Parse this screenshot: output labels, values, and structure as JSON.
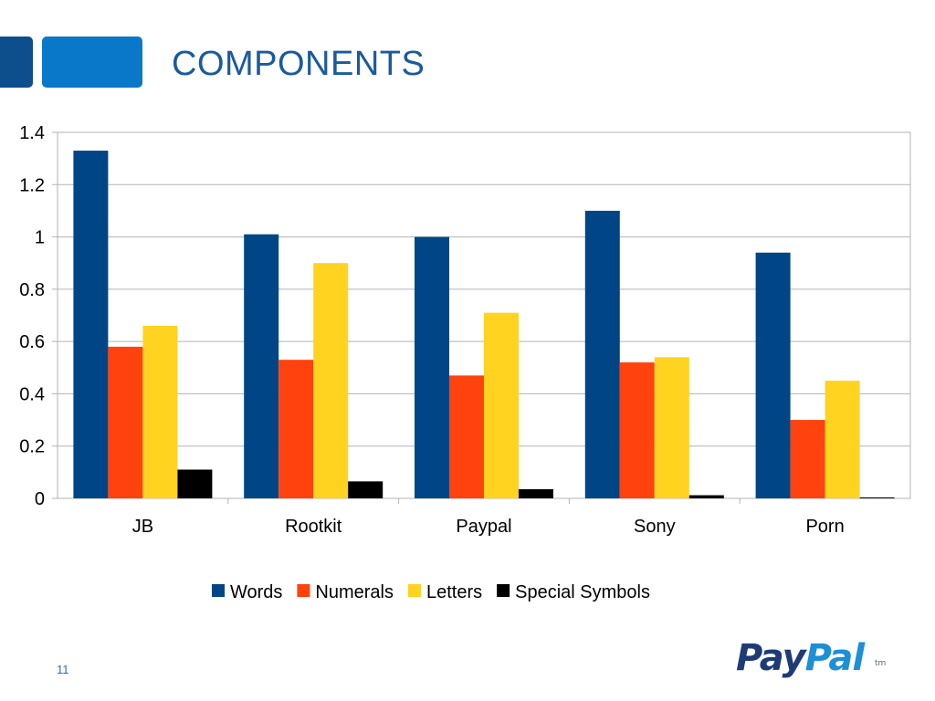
{
  "slide": {
    "title": "COMPONENTS",
    "page_number": "11"
  },
  "logo": {
    "pay": "Pay",
    "pal": "Pal",
    "tm": "tm"
  },
  "colors": {
    "title": "#1a5a9e",
    "accent_dark": "#0d4f8c",
    "accent_light": "#0a78c8"
  },
  "chart_data": {
    "type": "bar",
    "categories": [
      "JB",
      "Rootkit",
      "Paypal",
      "Sony",
      "Porn"
    ],
    "series": [
      {
        "name": "Words",
        "color": "#004586",
        "values": [
          1.33,
          1.01,
          1.0,
          1.1,
          0.94
        ]
      },
      {
        "name": "Numerals",
        "color": "#ff420e",
        "values": [
          0.58,
          0.53,
          0.47,
          0.52,
          0.3
        ]
      },
      {
        "name": "Letters",
        "color": "#ffd320",
        "values": [
          0.66,
          0.9,
          0.71,
          0.54,
          0.45
        ]
      },
      {
        "name": "Special Symbols",
        "color": "#000000",
        "values": [
          0.11,
          0.065,
          0.035,
          0.012,
          0.003
        ]
      }
    ],
    "yticks": [
      "0",
      "0.2",
      "0.4",
      "0.6",
      "0.8",
      "1",
      "1.2",
      "1.4"
    ],
    "ylim": [
      0,
      1.4
    ],
    "grid": true,
    "legend": "bottom"
  }
}
